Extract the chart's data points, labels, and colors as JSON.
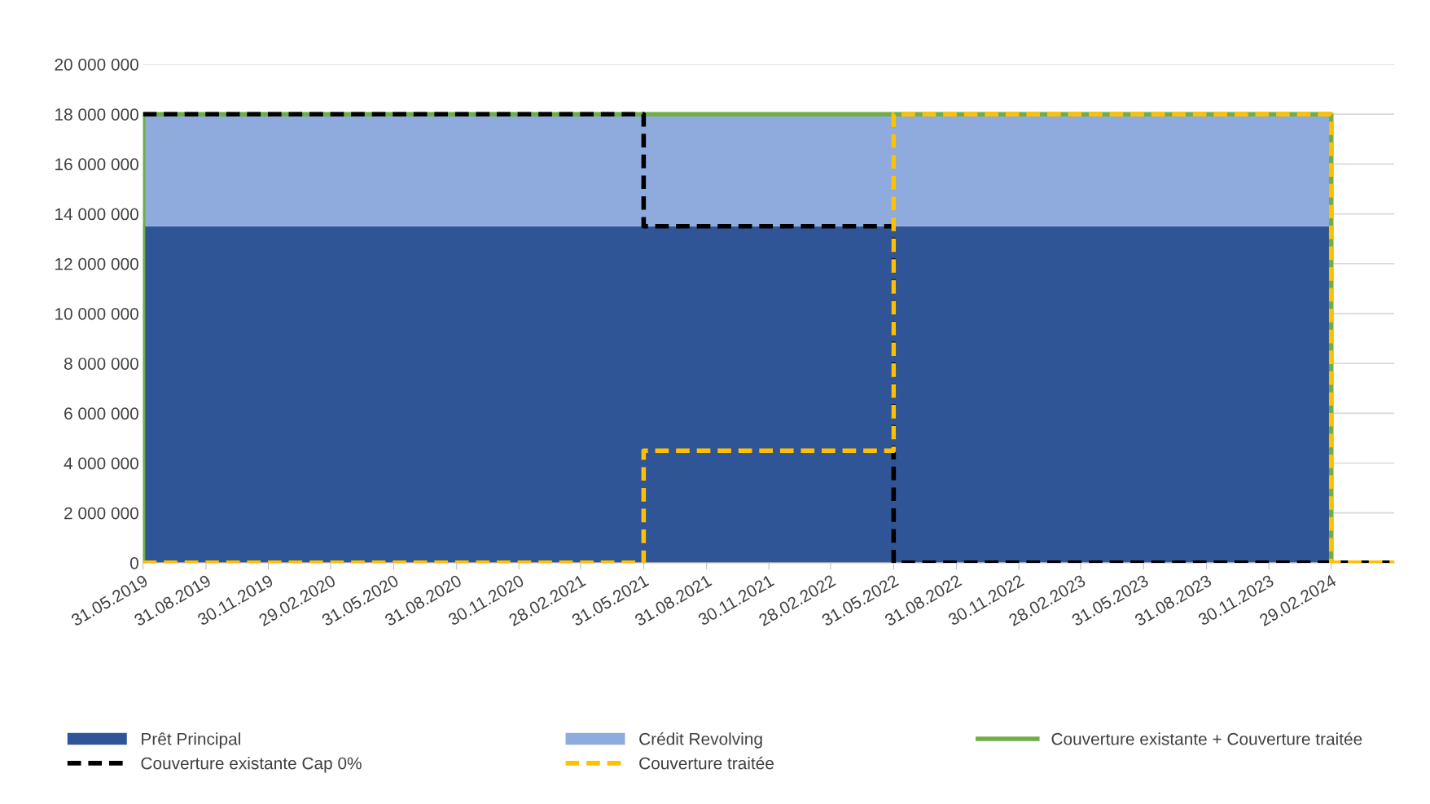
{
  "chart_data": {
    "type": "area",
    "stacked": true,
    "legend": "bottom",
    "grid": "y",
    "marker": "none",
    "xlim": [
      "2019-05-31",
      "2024-05-31"
    ],
    "xticks": [
      {
        "value": "2019-05-31",
        "label": "31.05.2019"
      },
      {
        "value": "2019-08-31",
        "label": "31.08.2019"
      },
      {
        "value": "2019-11-30",
        "label": "30.11.2019"
      },
      {
        "value": "2020-02-29",
        "label": "29.02.2020"
      },
      {
        "value": "2020-05-31",
        "label": "31.05.2020"
      },
      {
        "value": "2020-08-31",
        "label": "31.08.2020"
      },
      {
        "value": "2020-11-30",
        "label": "30.11.2020"
      },
      {
        "value": "2021-02-28",
        "label": "28.02.2021"
      },
      {
        "value": "2021-05-31",
        "label": "31.05.2021"
      },
      {
        "value": "2021-08-31",
        "label": "31.08.2021"
      },
      {
        "value": "2021-11-30",
        "label": "30.11.2021"
      },
      {
        "value": "2022-02-28",
        "label": "28.02.2022"
      },
      {
        "value": "2022-05-31",
        "label": "31.05.2022"
      },
      {
        "value": "2022-08-31",
        "label": "31.08.2022"
      },
      {
        "value": "2022-11-30",
        "label": "30.11.2022"
      },
      {
        "value": "2023-02-28",
        "label": "28.02.2023"
      },
      {
        "value": "2023-05-31",
        "label": "31.05.2023"
      },
      {
        "value": "2023-08-31",
        "label": "31.08.2023"
      },
      {
        "value": "2023-11-30",
        "label": "30.11.2023"
      },
      {
        "value": "2024-02-29",
        "label": "29.02.2024"
      }
    ],
    "ylim": [
      0,
      20000000
    ],
    "yticks": [
      {
        "value": 0,
        "label": "0"
      },
      {
        "value": 2000000,
        "label": "2 000 000"
      },
      {
        "value": 4000000,
        "label": "4 000 000"
      },
      {
        "value": 6000000,
        "label": "6 000 000"
      },
      {
        "value": 8000000,
        "label": "8 000 000"
      },
      {
        "value": 10000000,
        "label": "10 000 000"
      },
      {
        "value": 12000000,
        "label": "12 000 000"
      },
      {
        "value": 14000000,
        "label": "14 000 000"
      },
      {
        "value": 16000000,
        "label": "16 000 000"
      },
      {
        "value": 18000000,
        "label": "18 000 000"
      },
      {
        "value": 20000000,
        "label": "20 000 000"
      }
    ],
    "series": [
      {
        "name": "Prêt Principal",
        "color": "#2f5597",
        "x": [
          "2019-05-31",
          "2024-02-29",
          "2024-02-29"
        ],
        "values": [
          13500000,
          13500000,
          0
        ]
      },
      {
        "name": "Crédit Revolving",
        "color": "#8faadc",
        "x": [
          "2019-05-31",
          "2024-02-29",
          "2024-02-29"
        ],
        "values": [
          4500000,
          4500000,
          0
        ]
      },
      {
        "name": "Couverture existante + Couverture traitée",
        "type": "line",
        "line_style": "solid",
        "color": "#70ad47",
        "x": [
          "2019-05-31",
          "2019-05-31",
          "2024-02-29",
          "2024-02-29",
          "2024-05-31"
        ],
        "values": [
          0,
          18000000,
          18000000,
          0,
          0
        ]
      },
      {
        "name": "Couverture existante Cap 0%",
        "type": "line",
        "line_style": "dashed",
        "color": "#000000",
        "x": [
          "2019-05-31",
          "2021-05-31",
          "2021-05-31",
          "2022-05-31",
          "2022-05-31",
          "2024-05-31"
        ],
        "values": [
          18000000,
          18000000,
          13500000,
          13500000,
          0,
          0
        ]
      },
      {
        "name": "Couverture traitée",
        "type": "line",
        "line_style": "dashed",
        "color": "#ffc000",
        "x": [
          "2019-05-31",
          "2021-05-31",
          "2021-05-31",
          "2022-05-31",
          "2022-05-31",
          "2024-02-29",
          "2024-02-29",
          "2024-05-31"
        ],
        "values": [
          0,
          0,
          4500000,
          4500000,
          18000000,
          18000000,
          0,
          0
        ]
      }
    ]
  }
}
